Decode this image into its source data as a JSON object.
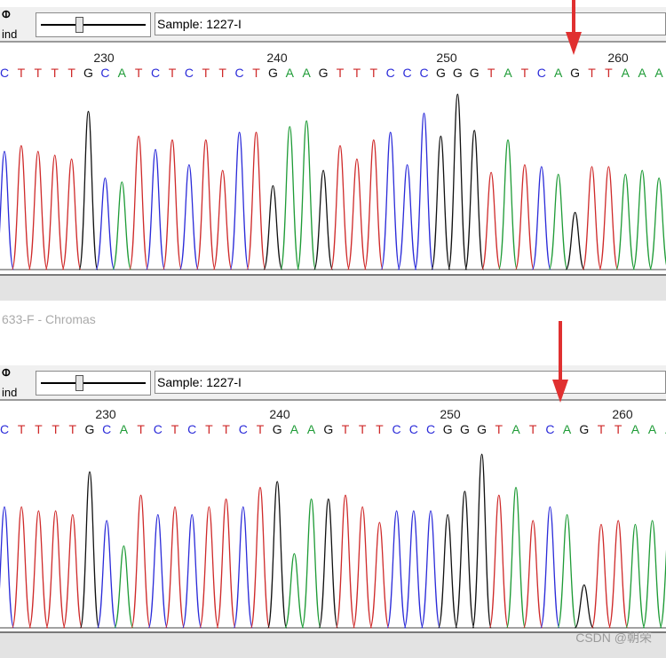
{
  "top_panel": {
    "find_label": "ind",
    "find_icon": "binoculars-icon",
    "slider_value_fraction": 0.37,
    "sample_label": "Sample: 1227-I"
  },
  "bottom_panel": {
    "window_title": "633-F - Chromas",
    "find_label": "ind",
    "find_icon": "binoculars-icon",
    "slider_value_fraction": 0.37,
    "sample_label": "Sample: 1227-I"
  },
  "ruler_labels": [
    "230",
    "240",
    "250",
    "260"
  ],
  "sequence": "CTTTTGCATCTCTTCTGAAGTTTCCCGGGTATCAGTTAAA",
  "base_colors": {
    "A": "#1e9b36",
    "C": "#2b2bd9",
    "G": "#111111",
    "T": "#cf2a2a"
  },
  "watermark": "CSDN @朝荣",
  "marker_color": "#e03030"
}
